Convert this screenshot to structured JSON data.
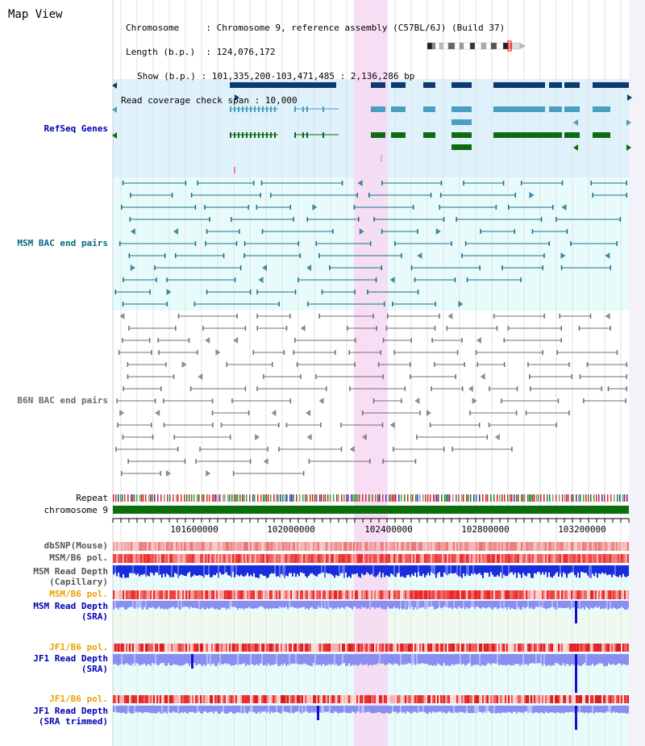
{
  "page_title": "Map View",
  "header": {
    "chromosome_label": "Chromosome",
    "chromosome_value": "Chromosome 9, reference assembly (C57BL/6J) (Build 37)",
    "length_label": "Length (b.p.)",
    "length_value": "124,076,172",
    "show_label": "Show (b.p.)",
    "show_value": "101,335,200-103,471,485 : 2,136,286 bp",
    "coverage_label": "Read coverage check span",
    "coverage_value": "10,000"
  },
  "tracks": {
    "refseq": "RefSeq Genes",
    "msm_bac": "MSM BAC end pairs",
    "b6n_bac": "B6N BAC end pairs",
    "repeat": "Repeat",
    "chromosome": "chromosome 9",
    "dbsnp": "dbSNP(Mouse)",
    "msm_b6_pol_1": "MSM/B6 pol.",
    "msm_depth_cap_1": "MSM Read Depth",
    "msm_depth_cap_2": "(Capillary)",
    "msm_b6_pol_2": "MSM/B6 pol.",
    "msm_depth_sra_1": "MSM Read Depth",
    "msm_depth_sra_2": "(SRA)",
    "jf1_b6_pol_1": "JF1/B6 pol.",
    "jf1_depth_sra_1": "JF1 Read Depth",
    "jf1_depth_sra_2": "(SRA)",
    "jf1_b6_pol_2": "JF1/B6 pol.",
    "jf1_depth_trim_1": "JF1 Read Depth",
    "jf1_depth_trim_2": "(SRA trimmed)"
  },
  "axis": {
    "ticks": [
      "101600000",
      "102000000",
      "102400000",
      "102800000",
      "103200000"
    ]
  },
  "colors": {
    "refseq_bg": "#dff1fa",
    "msm_bac_bg": "#e8fbfb",
    "highlight": "#f7d8f2",
    "gene_navy": "#0b3b70",
    "gene_teal": "#4a9ec0",
    "gene_green": "#0f6b0f",
    "bac_teal": "#1a6f8a",
    "bac_gray": "#707070",
    "chromosome_bar": "#0a6e0a",
    "depth_blue": "#1a2cdc",
    "depth_light": "#8a8ef0"
  }
}
